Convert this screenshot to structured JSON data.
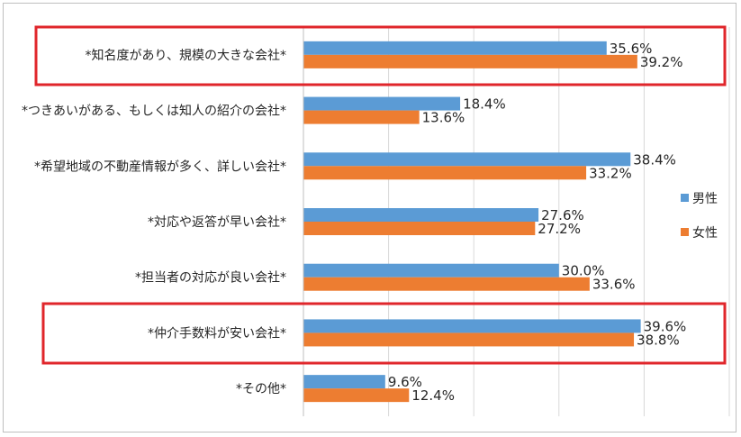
{
  "chart_data": {
    "type": "bar",
    "orientation": "horizontal",
    "categories": [
      "*知名度があり、規模の大きな会社*",
      "*つきあいがある、もしくは知人の紹介の会社*",
      "*希望地域の不動産情報が多く、詳しい会社*",
      "*対応や返答が早い会社*",
      "*担当者の対応が良い会社*",
      "*仲介手数料が安い会社*",
      "*その他*"
    ],
    "series": [
      {
        "name": "男性",
        "color": "#5b9bd5",
        "values": [
          35.6,
          18.4,
          38.4,
          27.6,
          30.0,
          39.6,
          9.6
        ],
        "labels": [
          "35.6%",
          "18.4%",
          "38.4%",
          "27.6%",
          "30.0%",
          "39.6%",
          "9.6%"
        ]
      },
      {
        "name": "女性",
        "color": "#ed7d31",
        "values": [
          39.2,
          13.6,
          33.2,
          27.2,
          33.6,
          38.8,
          12.4
        ],
        "labels": [
          "39.2%",
          "13.6%",
          "33.2%",
          "27.2%",
          "33.6%",
          "38.8%",
          "12.4%"
        ]
      }
    ],
    "xlim": [
      0,
      50
    ],
    "grid": true,
    "legend_position": "right",
    "highlighted_categories": [
      0,
      5
    ],
    "highlight_color": "#e0262b"
  }
}
